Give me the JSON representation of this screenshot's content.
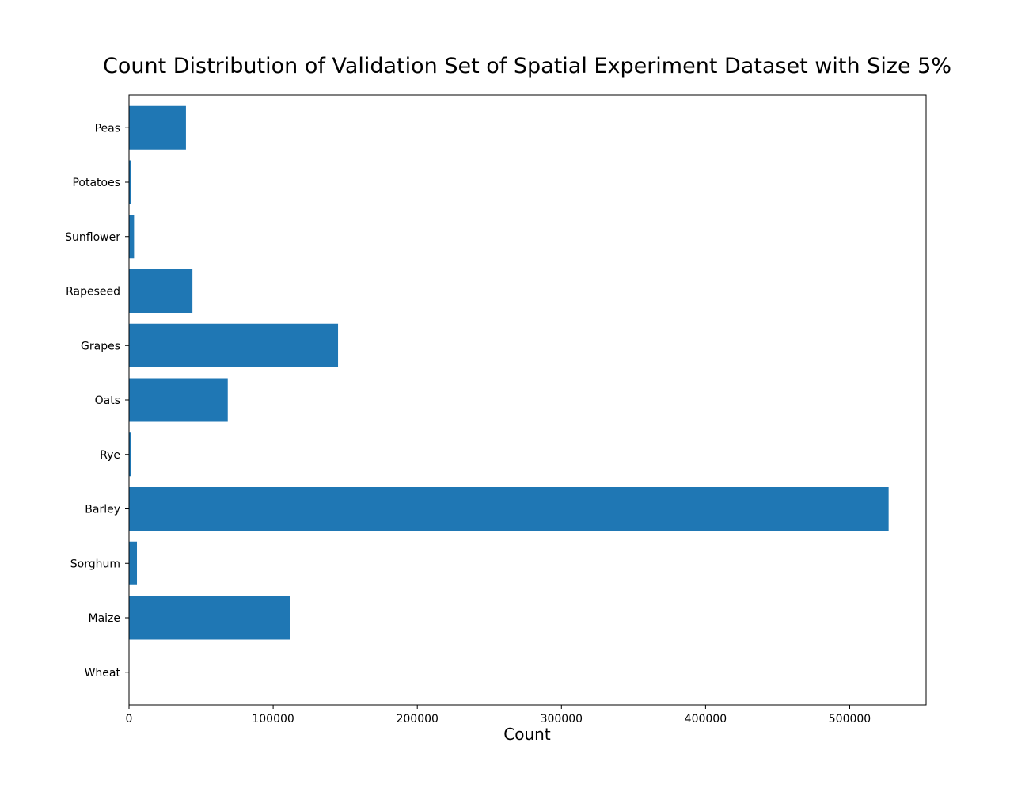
{
  "chart_data": {
    "type": "bar",
    "orientation": "horizontal",
    "title": "Count Distribution of Validation Set of Spatial Experiment Dataset with Size 5%",
    "xlabel": "Count",
    "ylabel": "",
    "categories": [
      "Wheat",
      "Maize",
      "Sorghum",
      "Barley",
      "Rye",
      "Oats",
      "Grapes",
      "Rapeseed",
      "Sunflower",
      "Potatoes",
      "Peas"
    ],
    "values": [
      0,
      112000,
      5500,
      527000,
      1500,
      68500,
      145000,
      44000,
      3500,
      1500,
      39500
    ],
    "xlim": [
      0,
      553000
    ],
    "xticks": [
      0,
      100000,
      200000,
      300000,
      400000,
      500000
    ],
    "bar_color": "#1f77b4",
    "grid": false,
    "legend": "none"
  }
}
